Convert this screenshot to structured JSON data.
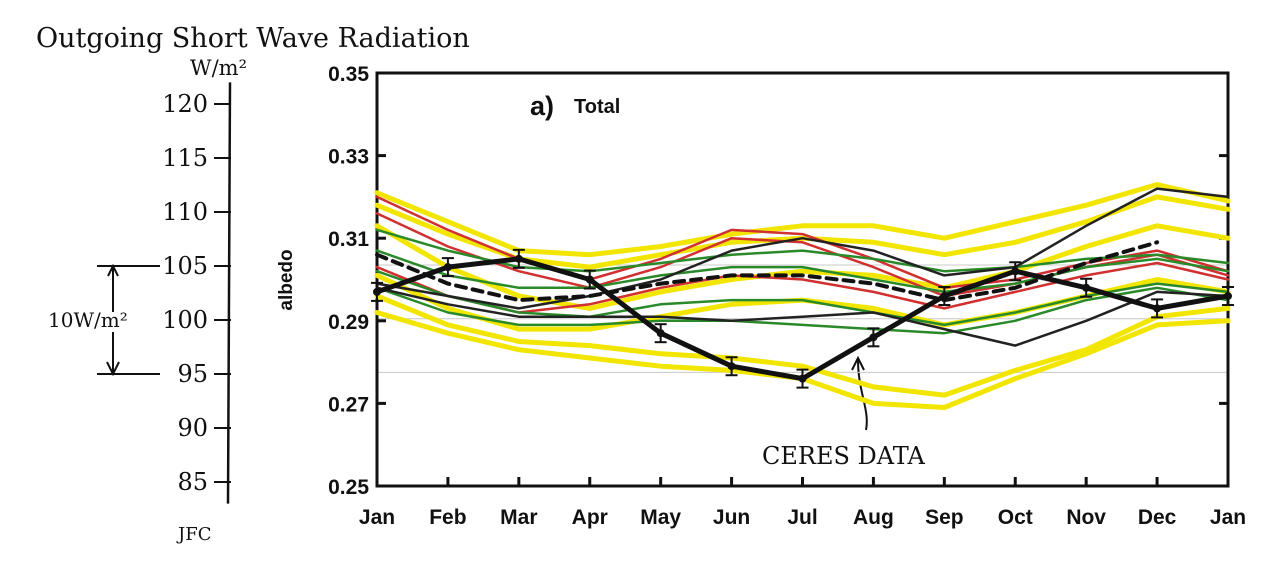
{
  "annotations": {
    "handwritten_title": "Outgoing Short Wave Radiation",
    "handwritten_unit": "W/m²",
    "scale_bracket": "10W/m²",
    "ceres_label": "CERES DATA",
    "initials": "JFC"
  },
  "flux_axis": {
    "ticks": [
      "120",
      "115",
      "110",
      "105",
      "100",
      "95",
      "90",
      "85"
    ],
    "values": [
      120,
      115,
      110,
      105,
      100,
      95,
      90,
      85
    ]
  },
  "chart_data": {
    "type": "line",
    "panel_label": "a)",
    "title": "Total",
    "xlabel": "",
    "ylabel": "albedo",
    "categories": [
      "Jan",
      "Feb",
      "Mar",
      "Apr",
      "May",
      "Jun",
      "Jul",
      "Aug",
      "Sep",
      "Oct",
      "Nov",
      "Dec",
      "Jan"
    ],
    "ylim": [
      0.25,
      0.35
    ],
    "yticks": [
      "0.35",
      "0.33",
      "0.31",
      "0.29",
      "0.27",
      "0.25"
    ],
    "ytick_values": [
      0.35,
      0.33,
      0.31,
      0.29,
      0.27,
      0.25
    ],
    "grid": false,
    "series": [
      {
        "color": "#f2e600",
        "values": [
          0.321,
          0.314,
          0.307,
          0.306,
          0.308,
          0.311,
          0.313,
          0.313,
          0.31,
          0.314,
          0.318,
          0.323,
          0.319
        ]
      },
      {
        "color": "#f2e600",
        "values": [
          0.318,
          0.311,
          0.305,
          0.303,
          0.306,
          0.309,
          0.31,
          0.309,
          0.306,
          0.309,
          0.314,
          0.32,
          0.317
        ]
      },
      {
        "color": "#f2e600",
        "values": [
          0.313,
          0.303,
          0.296,
          0.293,
          0.297,
          0.3,
          0.302,
          0.301,
          0.298,
          0.302,
          0.308,
          0.313,
          0.31
        ]
      },
      {
        "color": "#f2e600",
        "values": [
          0.301,
          0.293,
          0.288,
          0.288,
          0.291,
          0.294,
          0.295,
          0.293,
          0.289,
          0.292,
          0.296,
          0.3,
          0.297
        ]
      },
      {
        "color": "#f2e600",
        "values": [
          0.296,
          0.289,
          0.285,
          0.284,
          0.282,
          0.281,
          0.279,
          0.274,
          0.272,
          0.278,
          0.283,
          0.291,
          0.293
        ]
      },
      {
        "color": "#f2e600",
        "values": [
          0.292,
          0.287,
          0.283,
          0.281,
          0.279,
          0.278,
          0.276,
          0.27,
          0.269,
          0.276,
          0.282,
          0.289,
          0.29
        ]
      },
      {
        "color": "#d13030",
        "values": [
          0.32,
          0.312,
          0.305,
          0.3,
          0.305,
          0.312,
          0.311,
          0.305,
          0.298,
          0.3,
          0.304,
          0.307,
          0.302
        ]
      },
      {
        "color": "#d13030",
        "values": [
          0.316,
          0.308,
          0.302,
          0.298,
          0.303,
          0.31,
          0.309,
          0.303,
          0.296,
          0.299,
          0.303,
          0.306,
          0.301
        ]
      },
      {
        "color": "#d13030",
        "values": [
          0.303,
          0.296,
          0.292,
          0.294,
          0.298,
          0.301,
          0.3,
          0.297,
          0.293,
          0.297,
          0.301,
          0.304,
          0.3
        ]
      },
      {
        "color": "#2a8a2a",
        "values": [
          0.312,
          0.307,
          0.303,
          0.302,
          0.304,
          0.306,
          0.307,
          0.305,
          0.302,
          0.303,
          0.305,
          0.306,
          0.304
        ]
      },
      {
        "color": "#2a8a2a",
        "values": [
          0.307,
          0.301,
          0.298,
          0.298,
          0.301,
          0.303,
          0.303,
          0.3,
          0.297,
          0.299,
          0.303,
          0.305,
          0.302
        ]
      },
      {
        "color": "#2a8a2a",
        "values": [
          0.302,
          0.296,
          0.292,
          0.291,
          0.294,
          0.295,
          0.295,
          0.292,
          0.289,
          0.292,
          0.296,
          0.299,
          0.297
        ]
      },
      {
        "color": "#2a8a2a",
        "values": [
          0.298,
          0.292,
          0.289,
          0.289,
          0.29,
          0.29,
          0.289,
          0.288,
          0.287,
          0.29,
          0.295,
          0.298,
          0.295
        ]
      },
      {
        "color": "#222222",
        "values": [
          0.298,
          0.294,
          0.291,
          0.291,
          0.291,
          0.29,
          0.291,
          0.292,
          0.288,
          0.284,
          0.29,
          0.297,
          0.296
        ]
      },
      {
        "color": "#222222",
        "values": [
          0.299,
          0.296,
          0.293,
          0.296,
          0.3,
          0.307,
          0.31,
          0.307,
          0.301,
          0.303,
          0.313,
          0.322,
          0.32
        ]
      },
      {
        "color": "#111111",
        "dashed": true,
        "values": [
          0.306,
          0.299,
          0.295,
          0.296,
          0.299,
          0.301,
          0.301,
          0.299,
          0.295,
          0.298,
          0.304,
          0.309,
          null
        ]
      },
      {
        "color": "#111111",
        "thick": true,
        "markers": true,
        "values": [
          0.297,
          0.303,
          0.305,
          0.3,
          0.287,
          0.279,
          0.276,
          0.286,
          0.296,
          0.302,
          0.298,
          0.293,
          0.296
        ]
      }
    ]
  }
}
